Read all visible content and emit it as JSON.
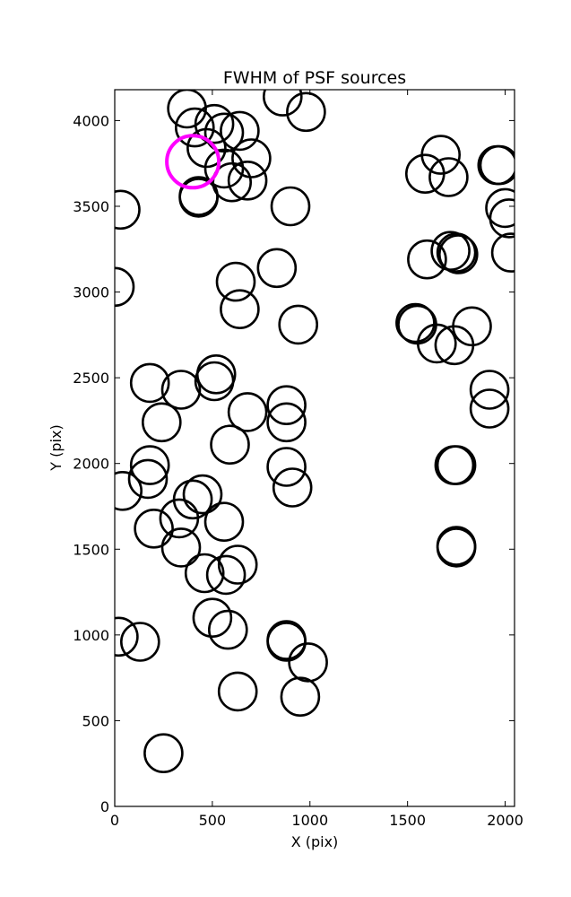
{
  "chart_data": {
    "type": "scatter",
    "title": "FWHM of PSF sources",
    "xlabel": "X (pix)",
    "ylabel": "Y (pix)",
    "xlim": [
      0,
      2048
    ],
    "ylim": [
      0,
      4180
    ],
    "xticks": [
      0,
      500,
      1000,
      1500,
      2000
    ],
    "yticks": [
      0,
      500,
      1000,
      1500,
      2000,
      2500,
      3000,
      3500,
      4000
    ],
    "grid": false,
    "marker": "open-circle",
    "fwhm_pix": 90,
    "points_color": "#000000",
    "highlight_color": "#ff00ff",
    "points": [
      [
        370,
        4070
      ],
      [
        860,
        4140
      ],
      [
        980,
        4050
      ],
      [
        410,
        3960
      ],
      [
        510,
        3980
      ],
      [
        560,
        3930
      ],
      [
        640,
        3940
      ],
      [
        470,
        3840
      ],
      [
        560,
        3720
      ],
      [
        700,
        3780
      ],
      [
        600,
        3640
      ],
      [
        680,
        3650
      ],
      [
        430,
        3560
      ],
      [
        430,
        3550
      ],
      [
        30,
        3480
      ],
      [
        900,
        3500
      ],
      [
        620,
        3060
      ],
      [
        830,
        3140
      ],
      [
        0,
        3030
      ],
      [
        640,
        2900
      ],
      [
        940,
        2810
      ],
      [
        520,
        2520
      ],
      [
        510,
        2480
      ],
      [
        180,
        2470
      ],
      [
        340,
        2430
      ],
      [
        880,
        2340
      ],
      [
        880,
        2240
      ],
      [
        680,
        2300
      ],
      [
        240,
        2240
      ],
      [
        590,
        2110
      ],
      [
        180,
        1990
      ],
      [
        170,
        1910
      ],
      [
        880,
        1980
      ],
      [
        910,
        1860
      ],
      [
        40,
        1840
      ],
      [
        450,
        1820
      ],
      [
        400,
        1790
      ],
      [
        330,
        1680
      ],
      [
        560,
        1660
      ],
      [
        200,
        1620
      ],
      [
        340,
        1510
      ],
      [
        630,
        1410
      ],
      [
        460,
        1360
      ],
      [
        570,
        1350
      ],
      [
        500,
        1100
      ],
      [
        580,
        1030
      ],
      [
        20,
        990
      ],
      [
        130,
        960
      ],
      [
        880,
        970
      ],
      [
        880,
        960
      ],
      [
        990,
        840
      ],
      [
        630,
        670
      ],
      [
        950,
        640
      ],
      [
        250,
        310
      ],
      [
        1670,
        3800
      ],
      [
        1590,
        3690
      ],
      [
        1710,
        3670
      ],
      [
        1960,
        3740
      ],
      [
        1970,
        3740
      ],
      [
        2000,
        3490
      ],
      [
        2020,
        3430
      ],
      [
        1720,
        3240
      ],
      [
        1750,
        3230
      ],
      [
        1760,
        3220
      ],
      [
        2030,
        3230
      ],
      [
        1600,
        3190
      ],
      [
        1540,
        2820
      ],
      [
        1550,
        2810
      ],
      [
        1650,
        2700
      ],
      [
        1740,
        2690
      ],
      [
        1830,
        2800
      ],
      [
        1920,
        2430
      ],
      [
        1920,
        2320
      ],
      [
        1740,
        1990
      ],
      [
        1750,
        1990
      ],
      [
        1750,
        1520
      ],
      [
        1750,
        1510
      ]
    ],
    "highlight": [
      [
        400,
        3760
      ]
    ]
  }
}
